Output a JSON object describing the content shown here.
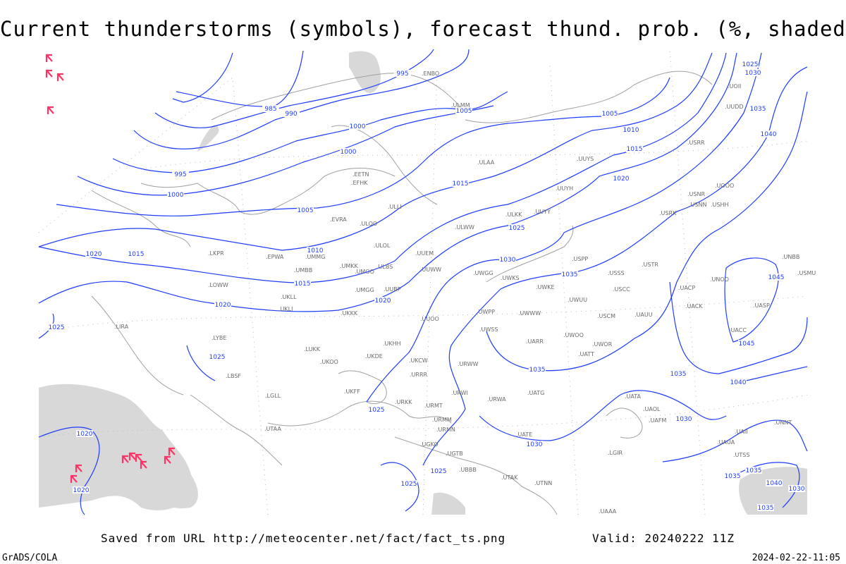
{
  "title": "Current thunderstorms (symbols), forecast thund. prob. (%, shaded)",
  "footer": {
    "saved_from": "Saved from URL http://meteocenter.net/fact/fact_ts.png",
    "valid": "Valid: 20240222 11Z",
    "software": "GrADS/COLA",
    "timestamp": "2024-02-22-11:05"
  },
  "colors": {
    "isobar": "#1f3cff",
    "coastline": "#a0a0a0",
    "thunderstorm_symbol": "#ff3366",
    "probability_shading": "#d8d8d8"
  },
  "icons": {
    "thunderstorm": "thunderstorm-symbol-icon"
  },
  "isobar_labels": [
    "995",
    "985",
    "990",
    "1005",
    "1005",
    "1000",
    "1000",
    "995",
    "1010",
    "1015",
    "1020",
    "1015",
    "1000",
    "1005",
    "1025",
    "1020",
    "1015",
    "1010",
    "1030",
    "1035",
    "1015",
    "1020",
    "1020",
    "1025",
    "1025",
    "1035",
    "1035",
    "1040",
    "1045",
    "1045",
    "1040",
    "1035",
    "1030",
    "1025",
    "1025",
    "1030",
    "1030",
    "1020",
    "1020",
    "1025",
    "1025",
    "1035",
    "1035",
    "1040",
    "1030",
    "1035"
  ],
  "stations": [
    "ENBO",
    "ULMM",
    "ULAA",
    "EFHK",
    "EETN",
    "ULLI",
    "EVRA",
    "ULOO",
    "ULOL",
    "UUYS",
    "UUYH",
    "ULKK",
    "UUYY",
    "ULWW",
    "EPWA",
    "UMMG",
    "UMBB",
    "UMKK",
    "UMOO",
    "ULBS",
    "UUEM",
    "UUWW",
    "UWGG",
    "UWKS",
    "USPP",
    "USSS",
    "USTR",
    "LKPR",
    "LOWW",
    "UKLL",
    "UKLI",
    "UMGG",
    "UUBP",
    "UKKK",
    "UWKE",
    "UWUU",
    "UWWW",
    "UWPP",
    "USCC",
    "USCM",
    "UAUU",
    "UACP",
    "UACK",
    "UACC",
    "UNOO",
    "UASP",
    "LIRA",
    "LYBE",
    "UKHH",
    "UUOO",
    "UKDE",
    "UWSS",
    "UWOO",
    "UWOR",
    "UARR",
    "UATT",
    "LUKK",
    "UKOO",
    "UKCW",
    "URWW",
    "LBSF",
    "LGLL",
    "UKFF",
    "URKK",
    "URRR",
    "URWI",
    "URWA",
    "UATG",
    "UATA",
    "UAOL",
    "URMT",
    "URMM",
    "URMN",
    "UATE",
    "UGKO",
    "UGTB",
    "UBBB",
    "UTAK",
    "UTNN",
    "LGIR",
    "UTAA",
    "UAAA",
    "UAFM",
    "UNNT",
    "UNBB",
    "USMU",
    "USRR",
    "USNN",
    "USHH",
    "USRK",
    "USNR",
    "UOOO",
    "UOII",
    "UUDD",
    "UAII",
    "UAUA",
    "UTSS"
  ],
  "thunderstorm_count": 12
}
